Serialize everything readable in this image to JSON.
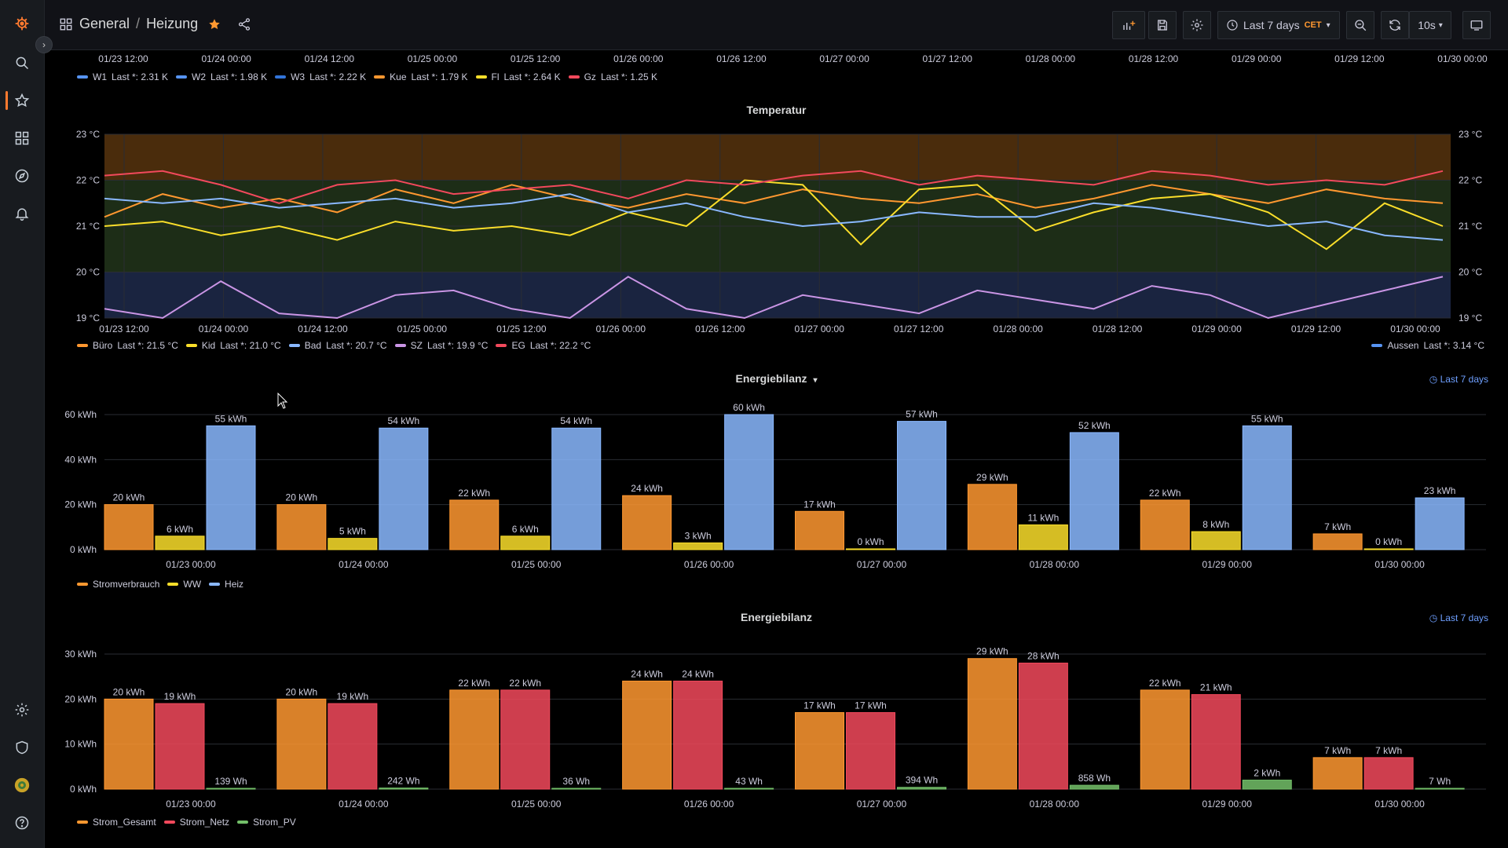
{
  "topbar": {
    "breadcrumb_root": "General",
    "breadcrumb_sep": "/",
    "breadcrumb_page": "Heizung",
    "time_range": "Last 7 days",
    "timezone": "CET",
    "refresh": "10s"
  },
  "top_partial": {
    "x_ticks": [
      "01/23 12:00",
      "01/24 00:00",
      "01/24 12:00",
      "01/25 00:00",
      "01/25 12:00",
      "01/26 00:00",
      "01/26 12:00",
      "01/27 00:00",
      "01/27 12:00",
      "01/28 00:00",
      "01/28 12:00",
      "01/29 00:00",
      "01/29 12:00",
      "01/30 00:00"
    ],
    "legend": [
      {
        "name": "W1",
        "last": "Last *: 2.31 K",
        "color": "#5794f2"
      },
      {
        "name": "W2",
        "last": "Last *: 1.98 K",
        "color": "#5794f2"
      },
      {
        "name": "W3",
        "last": "Last *: 2.22 K",
        "color": "#3274d9"
      },
      {
        "name": "Kue",
        "last": "Last *: 1.79 K",
        "color": "#ff9830"
      },
      {
        "name": "Fl",
        "last": "Last *: 2.64 K",
        "color": "#fade2a"
      },
      {
        "name": "Gz",
        "last": "Last *: 1.25 K",
        "color": "#f2495c"
      }
    ]
  },
  "temperatur": {
    "title": "Temperatur",
    "y_ticks": [
      "23 °C",
      "22 °C",
      "21 °C",
      "20 °C",
      "19 °C"
    ],
    "x_ticks": [
      "01/23 12:00",
      "01/24 00:00",
      "01/24 12:00",
      "01/25 00:00",
      "01/25 12:00",
      "01/26 00:00",
      "01/26 12:00",
      "01/27 00:00",
      "01/27 12:00",
      "01/28 00:00",
      "01/28 12:00",
      "01/29 00:00",
      "01/29 12:00",
      "01/30 00:00"
    ],
    "legend": [
      {
        "name": "Büro",
        "last": "Last *: 21.5 °C",
        "color": "#ff9830"
      },
      {
        "name": "Kid",
        "last": "Last *: 21.0 °C",
        "color": "#fade2a"
      },
      {
        "name": "Bad",
        "last": "Last *: 20.7 °C",
        "color": "#8ab8ff"
      },
      {
        "name": "SZ",
        "last": "Last *: 19.9 °C",
        "color": "#ca95e5"
      },
      {
        "name": "EG",
        "last": "Last *: 22.2 °C",
        "color": "#f2495c"
      }
    ],
    "legend_right": {
      "name": "Aussen",
      "last": "Last *: 3.14 °C",
      "color": "#5794f2"
    }
  },
  "energie1": {
    "title": "Energiebilanz",
    "badge": "Last 7 days",
    "legend": [
      {
        "name": "Stromverbrauch",
        "color": "#ff9830"
      },
      {
        "name": "WW",
        "color": "#fade2a"
      },
      {
        "name": "Heiz",
        "color": "#8ab8ff"
      }
    ]
  },
  "energie2": {
    "title": "Energiebilanz",
    "badge": "Last 7 days",
    "legend": [
      {
        "name": "Strom_Gesamt",
        "color": "#ff9830"
      },
      {
        "name": "Strom_Netz",
        "color": "#f2495c"
      },
      {
        "name": "Strom_PV",
        "color": "#73bf69"
      }
    ]
  },
  "chart_data": [
    {
      "type": "line",
      "title": "Temperatur",
      "ylim": [
        19,
        23
      ],
      "y_unit": "°C",
      "x_start": "01/23 12:00",
      "x_end": "01/30 00:00",
      "series": [
        {
          "name": "Büro",
          "values": [
            21.2,
            21.7,
            21.4,
            21.6,
            21.3,
            21.8,
            21.5,
            21.9,
            21.6,
            21.4,
            21.7,
            21.5,
            21.8,
            21.6,
            21.5,
            21.7,
            21.4,
            21.6,
            21.9,
            21.7,
            21.5,
            21.8,
            21.6,
            21.5
          ]
        },
        {
          "name": "Kid",
          "values": [
            21.0,
            21.1,
            20.8,
            21.0,
            20.7,
            21.1,
            20.9,
            21.0,
            20.8,
            21.3,
            21.0,
            22.0,
            21.9,
            20.6,
            21.8,
            21.9,
            20.9,
            21.3,
            21.6,
            21.7,
            21.3,
            20.5,
            21.5,
            21.0
          ]
        },
        {
          "name": "Bad",
          "values": [
            21.6,
            21.5,
            21.6,
            21.4,
            21.5,
            21.6,
            21.4,
            21.5,
            21.7,
            21.3,
            21.5,
            21.2,
            21.0,
            21.1,
            21.3,
            21.2,
            21.2,
            21.5,
            21.4,
            21.2,
            21.0,
            21.1,
            20.8,
            20.7
          ]
        },
        {
          "name": "SZ",
          "values": [
            19.2,
            19.0,
            19.8,
            19.1,
            19.0,
            19.5,
            19.6,
            19.2,
            19.0,
            19.9,
            19.2,
            19.0,
            19.5,
            19.3,
            19.1,
            19.6,
            19.4,
            19.2,
            19.7,
            19.5,
            19.0,
            19.3,
            19.6,
            19.9
          ]
        },
        {
          "name": "EG",
          "values": [
            22.1,
            22.2,
            21.9,
            21.5,
            21.9,
            22.0,
            21.7,
            21.8,
            21.9,
            21.6,
            22.0,
            21.9,
            22.1,
            22.2,
            21.9,
            22.1,
            22.0,
            21.9,
            22.2,
            22.1,
            21.9,
            22.0,
            21.9,
            22.2
          ]
        }
      ]
    },
    {
      "type": "bar",
      "title": "Energiebilanz",
      "categories": [
        "01/23 00:00",
        "01/24 00:00",
        "01/25 00:00",
        "01/26 00:00",
        "01/27 00:00",
        "01/28 00:00",
        "01/29 00:00",
        "01/30 00:00"
      ],
      "ylim": [
        0,
        60
      ],
      "y_ticks": [
        "0 kWh",
        "20 kWh",
        "40 kWh",
        "60 kWh"
      ],
      "series": [
        {
          "name": "Stromverbrauch",
          "values": [
            20,
            20,
            22,
            24,
            17,
            29,
            22,
            7
          ],
          "labels": [
            "20 kWh",
            "20 kWh",
            "22 kWh",
            "24 kWh",
            "17 kWh",
            "29 kWh",
            "22 kWh",
            "7 kWh"
          ]
        },
        {
          "name": "WW",
          "values": [
            6,
            5,
            6,
            3,
            0,
            11,
            8,
            0
          ],
          "labels": [
            "6 kWh",
            "5 kWh",
            "6 kWh",
            "3 kWh",
            "0 kWh",
            "11 kWh",
            "8 kWh",
            "0 kWh"
          ]
        },
        {
          "name": "Heiz",
          "values": [
            55,
            54,
            54,
            60,
            57,
            52,
            55,
            23
          ],
          "labels": [
            "55 kWh",
            "54 kWh",
            "54 kWh",
            "60 kWh",
            "57 kWh",
            "52 kWh",
            "55 kWh",
            "23 kWh"
          ]
        }
      ]
    },
    {
      "type": "bar",
      "title": "Energiebilanz",
      "categories": [
        "01/23 00:00",
        "01/24 00:00",
        "01/25 00:00",
        "01/26 00:00",
        "01/27 00:00",
        "01/28 00:00",
        "01/29 00:00",
        "01/30 00:00"
      ],
      "ylim": [
        0,
        30
      ],
      "y_ticks": [
        "0 kWh",
        "10 kWh",
        "20 kWh",
        "30 kWh"
      ],
      "series": [
        {
          "name": "Strom_Gesamt",
          "values": [
            20,
            20,
            22,
            24,
            17,
            29,
            22,
            7
          ],
          "labels": [
            "20 kWh",
            "20 kWh",
            "22 kWh",
            "24 kWh",
            "17 kWh",
            "29 kWh",
            "22 kWh",
            "7 kWh"
          ]
        },
        {
          "name": "Strom_Netz",
          "values": [
            19,
            19,
            22,
            24,
            17,
            28,
            21,
            7
          ],
          "labels": [
            "19 kWh",
            "19 kWh",
            "22 kWh",
            "24 kWh",
            "17 kWh",
            "28 kWh",
            "21 kWh",
            "7 kWh"
          ]
        },
        {
          "name": "Strom_PV",
          "values": [
            0.139,
            0.242,
            0.036,
            0.043,
            0.394,
            0.858,
            2,
            0.007
          ],
          "labels": [
            "139 Wh",
            "242 Wh",
            "36 Wh",
            "43 Wh",
            "394 Wh",
            "858 Wh",
            "2 kWh",
            "7 Wh"
          ]
        }
      ]
    }
  ]
}
